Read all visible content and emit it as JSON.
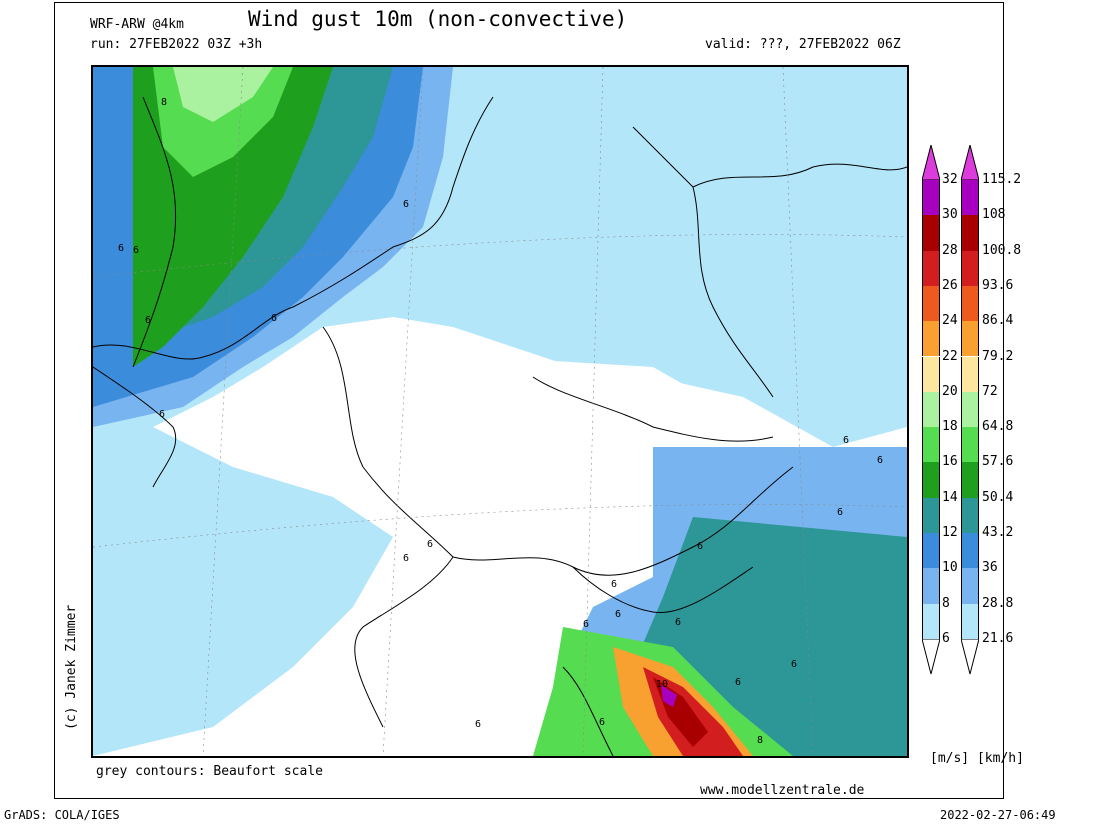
{
  "header": {
    "model": "WRF-ARW @4km",
    "title": "Wind gust 10m (non-convective)",
    "run": "run: 27FEB2022 03Z +3h",
    "valid": "valid: ???, 27FEB2022 06Z"
  },
  "footer": {
    "contours_note": "grey contours: Beaufort scale",
    "website": "www.modellzentrale.de",
    "copyright": "(c) Janek Zimmer",
    "grads": "GrADS: COLA/IGES",
    "timestamp": "2022-02-27-06:49"
  },
  "legend": {
    "units_label": "[m/s] [km/h]",
    "ms_labels": [
      "32",
      "30",
      "28",
      "26",
      "24",
      "22",
      "20",
      "18",
      "16",
      "14",
      "12",
      "10",
      "8",
      "6"
    ],
    "kmh_labels": [
      "115.2",
      "108",
      "100.8",
      "93.6",
      "86.4",
      "79.2",
      "72",
      "64.8",
      "57.6",
      "50.4",
      "43.2",
      "36",
      "28.8",
      "21.6"
    ],
    "colors": [
      "#a800c0",
      "#a80000",
      "#d21e1e",
      "#ee5a1e",
      "#f8a030",
      "#fde6a0",
      "#aaf2a0",
      "#56dc50",
      "#1ea01e",
      "#2d9696",
      "#3c8cdc",
      "#78b4f0",
      "#b4e6fa",
      "#ffffff"
    ],
    "top_arrow_color": "#dc3cdc"
  },
  "map": {
    "beaufort_labels": [
      "8",
      "6",
      "6",
      "6",
      "6",
      "6",
      "6",
      "6",
      "6",
      "6",
      "6",
      "6",
      "6",
      "6",
      "6",
      "6",
      "6",
      "6",
      "6",
      "6",
      "6",
      "8",
      "10"
    ]
  }
}
